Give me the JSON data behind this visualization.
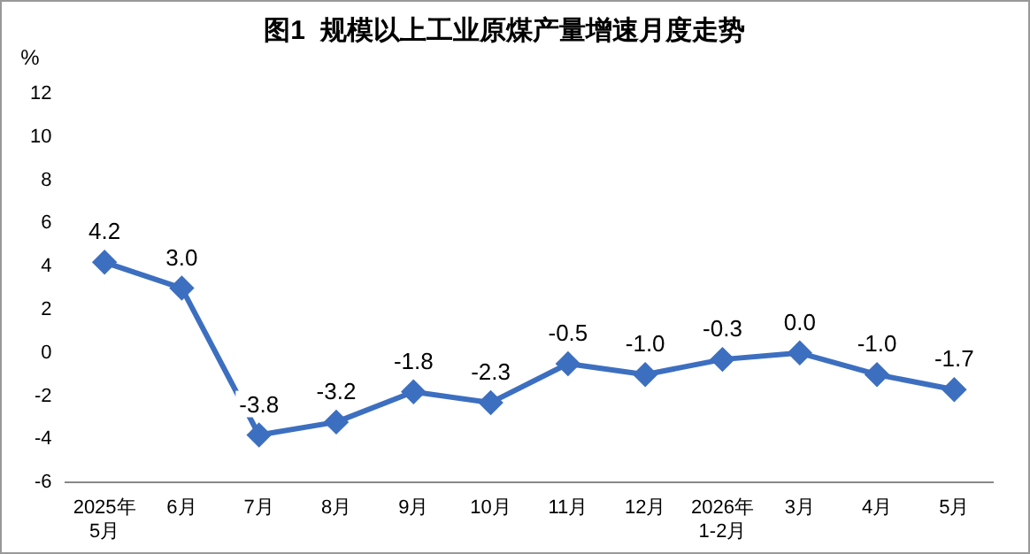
{
  "chart_data": {
    "type": "line",
    "title": "图1  规模以上工业原煤产量增速月度走势",
    "ylabel": "%",
    "categories": [
      "2025年\n5月",
      "6月",
      "7月",
      "8月",
      "9月",
      "10月",
      "11月",
      "12月",
      "2026年\n1-2月",
      "3月",
      "4月",
      "5月"
    ],
    "series": [
      {
        "color": "#3d6fc0",
        "values": [
          4.2,
          3.0,
          -3.8,
          -3.2,
          -1.8,
          -2.3,
          -0.5,
          -1.0,
          -0.3,
          0.0,
          -1.0,
          -1.7
        ],
        "value_labels": [
          "4.2",
          "3.0",
          "-3.8",
          "-3.2",
          "-1.8",
          "-2.3",
          "-0.5",
          "-1.0",
          "-0.3",
          "0.0",
          "-1.0",
          "-1.7"
        ]
      }
    ],
    "ylim": [
      -6,
      12
    ],
    "yticks": [
      -6,
      -4,
      -2,
      0,
      2,
      4,
      6,
      8,
      10,
      12
    ],
    "grid": false,
    "legend": false,
    "marker": "diamond",
    "line_style": "solid"
  }
}
